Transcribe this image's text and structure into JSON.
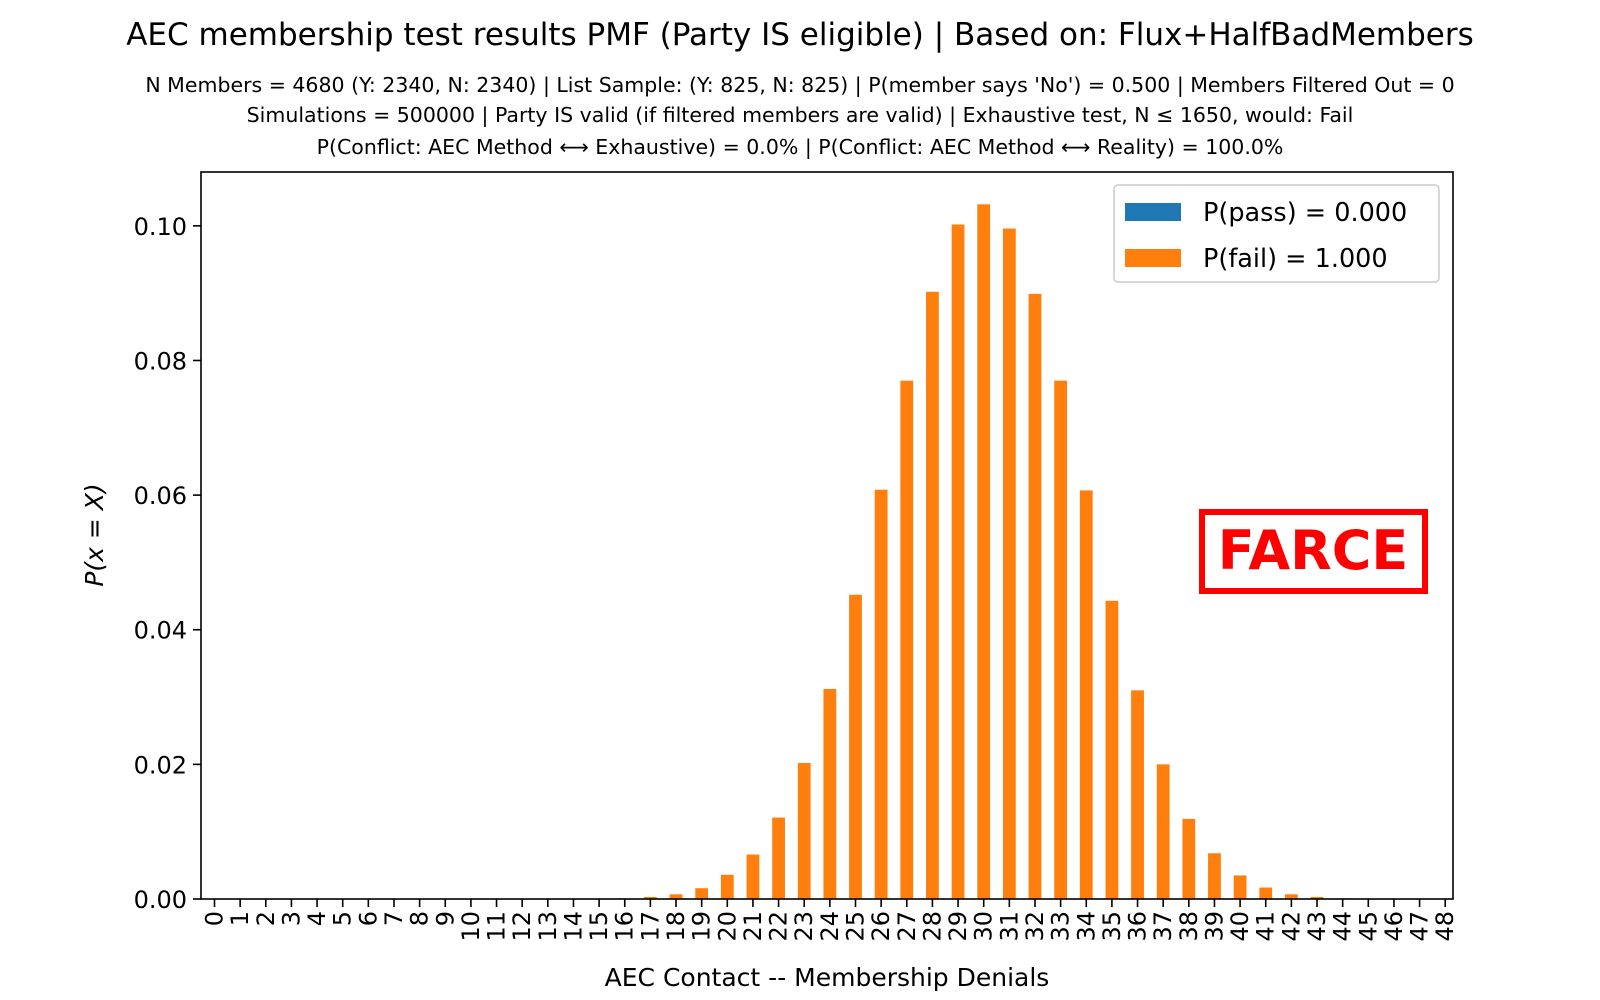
{
  "chart_data": {
    "type": "bar",
    "title": "AEC membership test results PMF (Party IS eligible) | Based on: Flux+HalfBadMembers",
    "subtitle_lines": [
      "N Members = 4680 (Y: 2340, N: 2340) | List Sample: (Y: 825, N: 825) | P(member says 'No') = 0.500 | Members Filtered Out = 0",
      "Simulations = 500000 | Party IS valid (if filtered members are valid) | Exhaustive test, N ≤ 1650, would: Fail",
      "P(Conflict: AEC Method ⟷ Exhaustive) = 0.0% | P(Conflict: AEC Method ⟷ Reality) = 100.0%"
    ],
    "xlabel": "AEC Contact -- Membership Denials",
    "ylabel": "P(x = X)",
    "ylim": [
      0,
      0.108
    ],
    "yticks": [
      0.0,
      0.02,
      0.04,
      0.06,
      0.08,
      0.1
    ],
    "ytick_labels": [
      "0.00",
      "0.02",
      "0.04",
      "0.06",
      "0.08",
      "0.10"
    ],
    "categories": [
      "0",
      "1",
      "2",
      "3",
      "4",
      "5",
      "6",
      "7",
      "8",
      "9",
      "10",
      "11",
      "12",
      "13",
      "14",
      "15",
      "16",
      "17",
      "18",
      "19",
      "20",
      "21",
      "22",
      "23",
      "24",
      "25",
      "26",
      "27",
      "28",
      "29",
      "30",
      "31",
      "32",
      "33",
      "34",
      "35",
      "36",
      "37",
      "38",
      "39",
      "40",
      "41",
      "42",
      "43",
      "44",
      "45",
      "46",
      "47",
      "48"
    ],
    "series": [
      {
        "name": "P(pass) = 0.000",
        "color": "#1f77b4",
        "values": [
          0,
          0,
          0,
          0,
          0,
          0,
          0,
          0,
          0,
          0,
          0,
          0,
          0,
          0,
          0,
          0,
          0,
          0,
          0,
          0,
          0,
          0,
          0,
          0,
          0,
          0,
          0,
          0,
          0,
          0,
          0,
          0,
          0,
          0,
          0,
          0,
          0,
          0,
          0,
          0,
          0,
          0,
          0,
          0,
          0,
          0,
          0,
          0,
          0
        ]
      },
      {
        "name": "P(fail) = 1.000",
        "color": "#ff7f0e",
        "values": [
          0,
          0,
          0,
          0,
          0,
          0,
          0,
          0,
          0,
          0,
          0,
          0,
          0,
          0,
          0,
          0,
          0.0001,
          0.0003,
          0.0007,
          0.0016,
          0.0036,
          0.0066,
          0.0121,
          0.0202,
          0.0312,
          0.0452,
          0.0608,
          0.077,
          0.0902,
          0.1002,
          0.1032,
          0.0996,
          0.0899,
          0.077,
          0.0607,
          0.0443,
          0.031,
          0.02,
          0.0119,
          0.0068,
          0.0035,
          0.0017,
          0.0007,
          0.0003,
          0.0001,
          0,
          0,
          0,
          0
        ]
      }
    ],
    "legend_position": "top-right",
    "grid": false,
    "annotation": {
      "text": "FARCE",
      "color": "#ff0000"
    }
  }
}
